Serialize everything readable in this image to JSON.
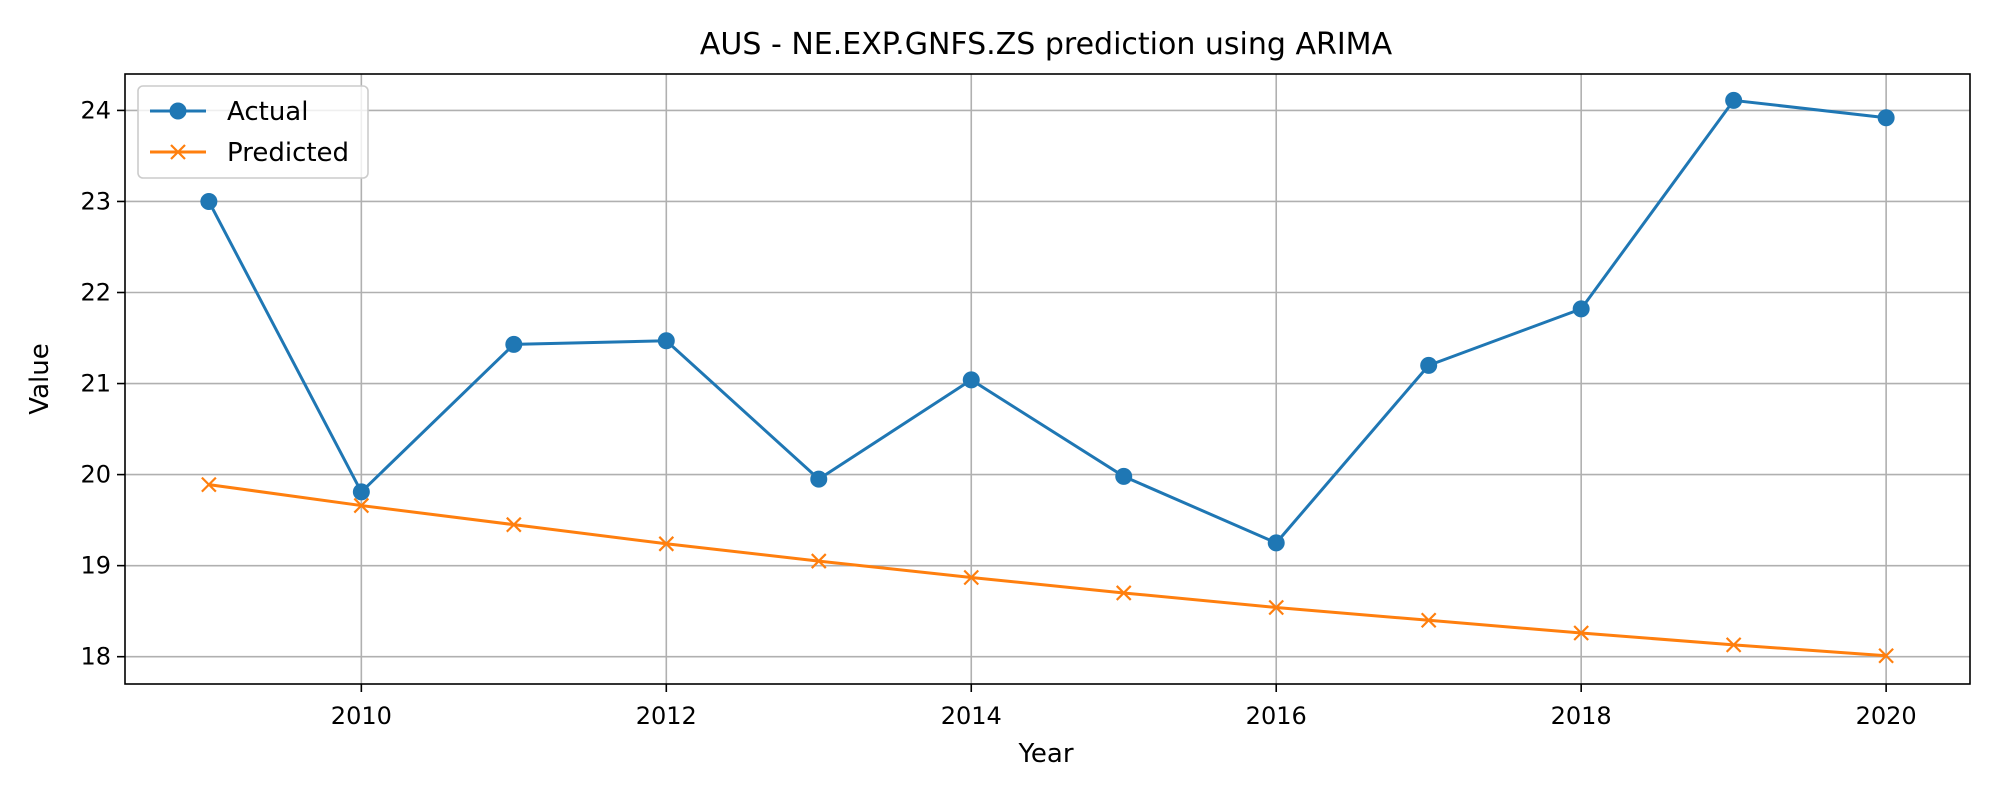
{
  "chart_data": {
    "type": "line",
    "title": "AUS - NE.EXP.GNFS.ZS prediction using ARIMA",
    "xlabel": "Year",
    "ylabel": "Value",
    "x": [
      2009,
      2010,
      2011,
      2012,
      2013,
      2014,
      2015,
      2016,
      2017,
      2018,
      2019,
      2020
    ],
    "xlim": [
      2008.45,
      2020.55
    ],
    "ylim": [
      17.7,
      24.4
    ],
    "xticks": [
      2010,
      2012,
      2014,
      2016,
      2018,
      2020
    ],
    "yticks": [
      18,
      19,
      20,
      21,
      22,
      23,
      24
    ],
    "grid": true,
    "legend_position": "top-left",
    "series": [
      {
        "name": "Actual",
        "color": "#1f77b4",
        "marker": "circle",
        "values": [
          23.0,
          19.81,
          21.43,
          21.47,
          19.95,
          21.04,
          19.98,
          19.25,
          21.2,
          21.82,
          24.11,
          23.92
        ]
      },
      {
        "name": "Predicted",
        "color": "#ff7f0e",
        "marker": "x",
        "values": [
          19.89,
          19.66,
          19.45,
          19.24,
          19.05,
          18.87,
          18.7,
          18.54,
          18.4,
          18.26,
          18.13,
          18.01
        ]
      }
    ]
  }
}
